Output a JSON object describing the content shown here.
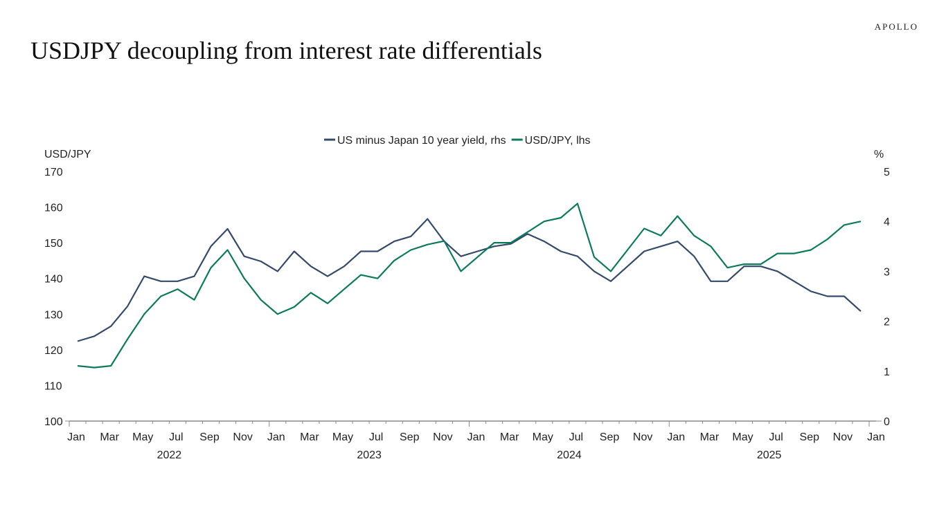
{
  "header": {
    "title": "USDJPY decoupling from interest rate differentials",
    "logo": "APOLLO"
  },
  "chart_data": {
    "type": "line",
    "title": "",
    "legend_position": "top-center",
    "ylabel_left": "USD/JPY",
    "ylabel_right": "%",
    "ylim_left": [
      100,
      170
    ],
    "ylim_right": [
      0,
      5
    ],
    "yticks_left": [
      "100",
      "110",
      "120",
      "130",
      "140",
      "150",
      "160",
      "170"
    ],
    "yticks_right": [
      "0",
      "1",
      "2",
      "3",
      "4",
      "5"
    ],
    "xlim": [
      "2022-01",
      "2026-01"
    ],
    "xtick_months": [
      "Jan",
      "Mar",
      "May",
      "Jul",
      "Sep",
      "Nov",
      "Jan",
      "Mar",
      "May",
      "Jul",
      "Sep",
      "Nov",
      "Jan",
      "Mar",
      "May",
      "Jul",
      "Sep",
      "Nov",
      "Jan",
      "Mar",
      "May",
      "Jul",
      "Sep",
      "Nov",
      "Jan"
    ],
    "xtick_years": [
      "2022",
      "2023",
      "2024",
      "2025"
    ],
    "grid": false,
    "x": [
      "2022-01",
      "2022-02",
      "2022-03",
      "2022-04",
      "2022-05",
      "2022-06",
      "2022-07",
      "2022-08",
      "2022-09",
      "2022-10",
      "2022-11",
      "2022-12",
      "2023-01",
      "2023-02",
      "2023-03",
      "2023-04",
      "2023-05",
      "2023-06",
      "2023-07",
      "2023-08",
      "2023-09",
      "2023-10",
      "2023-11",
      "2023-12",
      "2024-01",
      "2024-02",
      "2024-03",
      "2024-04",
      "2024-05",
      "2024-06",
      "2024-07",
      "2024-08",
      "2024-09",
      "2024-10",
      "2024-11",
      "2024-12",
      "2025-01",
      "2025-02",
      "2025-03",
      "2025-04",
      "2025-05",
      "2025-06",
      "2025-07",
      "2025-08",
      "2025-09",
      "2025-10",
      "2025-11",
      "2025-12"
    ],
    "series": [
      {
        "name": "US minus Japan 10 year yield, rhs",
        "axis": "right",
        "color": "#34496b",
        "values": [
          1.6,
          1.7,
          1.9,
          2.3,
          2.9,
          2.8,
          2.8,
          2.9,
          3.5,
          3.85,
          3.3,
          3.2,
          3.0,
          3.4,
          3.1,
          2.9,
          3.1,
          3.4,
          3.4,
          3.6,
          3.7,
          4.05,
          3.6,
          3.3,
          3.4,
          3.5,
          3.55,
          3.75,
          3.6,
          3.4,
          3.3,
          3.0,
          2.8,
          3.1,
          3.4,
          3.5,
          3.6,
          3.3,
          2.8,
          2.8,
          3.1,
          3.1,
          3.0,
          2.8,
          2.6,
          2.5,
          2.5,
          2.2
        ]
      },
      {
        "name": "USD/JPY, lhs",
        "axis": "left",
        "color": "#0a7a5c",
        "values": [
          115.5,
          115,
          115.5,
          123,
          130,
          135,
          137,
          134,
          143,
          148,
          140,
          134,
          130,
          132,
          136,
          133,
          137,
          141,
          140,
          145,
          148,
          149.5,
          150.5,
          142,
          146,
          150,
          150,
          153,
          156,
          157,
          161,
          146,
          142,
          148,
          154,
          152,
          157.5,
          152,
          149,
          143,
          144,
          144,
          147,
          147,
          148,
          151,
          155,
          156
        ]
      }
    ]
  }
}
